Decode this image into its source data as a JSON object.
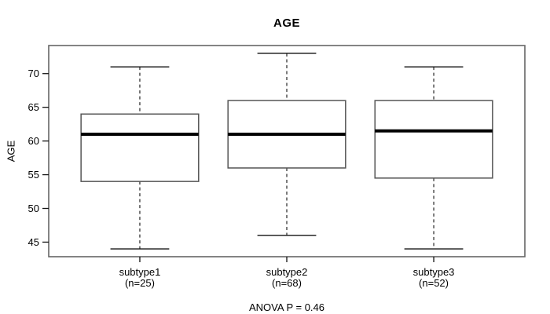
{
  "chart_data": {
    "type": "boxplot",
    "title": "AGE",
    "xlabel": "",
    "ylabel": "AGE",
    "annotation": "ANOVA P = 0.46",
    "yticks": [
      45,
      50,
      55,
      60,
      65,
      70
    ],
    "ylim": [
      42.84,
      74.16
    ],
    "grid": false,
    "legend": null,
    "groups": [
      {
        "label": "subtype1",
        "sublabel": "(n=25)",
        "n": 25,
        "whisker_low": 44,
        "q1": 54,
        "median": 61,
        "q3": 64,
        "whisker_high": 71
      },
      {
        "label": "subtype2",
        "sublabel": "(n=68)",
        "n": 68,
        "whisker_low": 46,
        "q1": 56,
        "median": 61,
        "q3": 66,
        "whisker_high": 73
      },
      {
        "label": "subtype3",
        "sublabel": "(n=52)",
        "n": 52,
        "whisker_low": 44,
        "q1": 54.5,
        "median": 61.5,
        "q3": 66,
        "whisker_high": 71
      }
    ],
    "colors": {
      "background": "#ffffff",
      "box_fill": "#ffffff",
      "box_stroke": "#555555",
      "frame_stroke": "#666666",
      "whisker_stroke": "#111111",
      "median_stroke": "#000000",
      "text": "#000000"
    }
  }
}
